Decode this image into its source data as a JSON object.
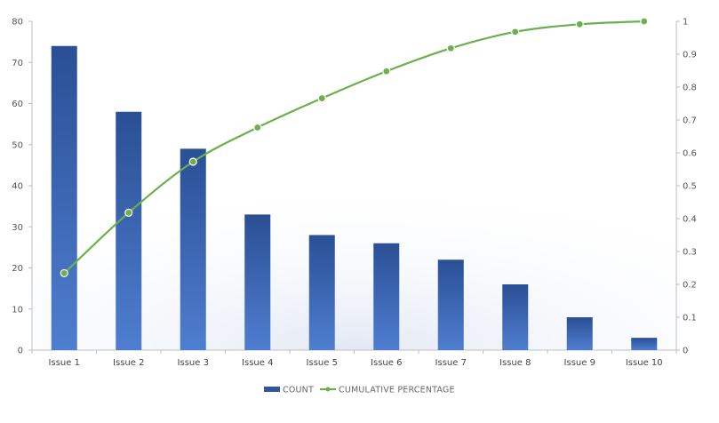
{
  "chart_data": {
    "type": "bar",
    "categories": [
      "Issue 1",
      "Issue 2",
      "Issue 3",
      "Issue 4",
      "Issue 5",
      "Issue 6",
      "Issue 7",
      "Issue 8",
      "Issue 9",
      "Issue 10"
    ],
    "series": [
      {
        "name": "COUNT",
        "type": "bar",
        "axis": "left",
        "color": "#2f57a0",
        "values": [
          74,
          58,
          49,
          33,
          28,
          26,
          22,
          16,
          8,
          3
        ]
      },
      {
        "name": "CUMULATIVE PERCENTAGE",
        "type": "line",
        "axis": "right",
        "color": "#6ab04c",
        "values": [
          0.234,
          0.418,
          0.573,
          0.677,
          0.766,
          0.848,
          0.918,
          0.968,
          0.991,
          1.0
        ]
      }
    ],
    "y_left": {
      "ylim": [
        0,
        80
      ],
      "ticks": [
        "0",
        "10",
        "20",
        "30",
        "40",
        "50",
        "60",
        "70",
        "80"
      ]
    },
    "y_right": {
      "ylim": [
        0,
        1
      ],
      "ticks": [
        "0",
        "0.1",
        "0.2",
        "0.3",
        "0.4",
        "0.5",
        "0.6",
        "0.7",
        "0.8",
        "0.9",
        "1"
      ]
    },
    "title": "",
    "xlabel": "",
    "ylabel": "",
    "grid": false,
    "legend_position": "bottom"
  }
}
